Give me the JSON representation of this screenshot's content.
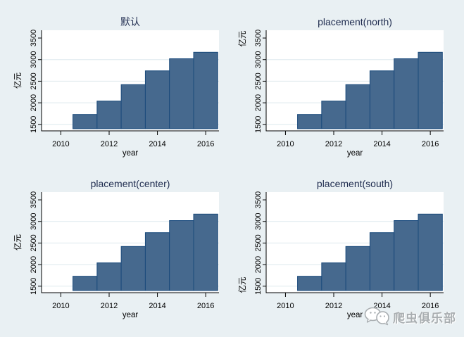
{
  "page": {
    "kind": "stata-graph-panel",
    "watermark": {
      "text": "爬虫俱乐部",
      "icon": "chat-bubbles-icon"
    }
  },
  "colors": {
    "background": "#E9F0F3",
    "plot_bg": "#FFFFFF",
    "grid": "#DEE9ED",
    "axis": "#000000",
    "text": "#000000",
    "title": "#1F2C4F",
    "bar_fill": "#46698E",
    "bar_stroke": "#1A4A7B",
    "watermark": "#A9AEB1"
  },
  "chart_data": [
    {
      "type": "bar",
      "title": "默认",
      "xlabel": "year",
      "ylabel": "亿元",
      "ylabel_placement": "center",
      "x": [
        2011,
        2012,
        2013,
        2014,
        2015,
        2016
      ],
      "values": [
        1730,
        2040,
        2420,
        2740,
        3020,
        3170
      ],
      "bar_base": 1400,
      "xticks": [
        2010,
        2012,
        2014,
        2016
      ],
      "yticks": [
        1500,
        2000,
        2500,
        3000,
        3500
      ],
      "gridlines": [
        1500,
        2000,
        2500,
        3000
      ],
      "xlim": [
        2009.2,
        2016.55
      ],
      "ylim": [
        1350,
        3680
      ],
      "grid": true,
      "legend": "none"
    },
    {
      "type": "bar",
      "title": "placement(north)",
      "xlabel": "year",
      "ylabel": "亿元",
      "ylabel_placement": "north",
      "x": [
        2011,
        2012,
        2013,
        2014,
        2015,
        2016
      ],
      "values": [
        1730,
        2040,
        2420,
        2740,
        3020,
        3170
      ],
      "bar_base": 1400,
      "xticks": [
        2010,
        2012,
        2014,
        2016
      ],
      "yticks": [
        1500,
        2000,
        2500,
        3000,
        3500
      ],
      "gridlines": [
        1500,
        2000,
        2500,
        3000
      ],
      "xlim": [
        2009.2,
        2016.55
      ],
      "ylim": [
        1350,
        3680
      ],
      "grid": true,
      "legend": "none"
    },
    {
      "type": "bar",
      "title": "placement(center)",
      "xlabel": "year",
      "ylabel": "亿元",
      "ylabel_placement": "center",
      "x": [
        2011,
        2012,
        2013,
        2014,
        2015,
        2016
      ],
      "values": [
        1730,
        2040,
        2420,
        2740,
        3020,
        3170
      ],
      "bar_base": 1400,
      "xticks": [
        2010,
        2012,
        2014,
        2016
      ],
      "yticks": [
        1500,
        2000,
        2500,
        3000,
        3500
      ],
      "gridlines": [
        1500,
        2000,
        2500,
        3000
      ],
      "xlim": [
        2009.2,
        2016.55
      ],
      "ylim": [
        1350,
        3680
      ],
      "grid": true,
      "legend": "none"
    },
    {
      "type": "bar",
      "title": "placement(south)",
      "xlabel": "year",
      "ylabel": "亿元",
      "ylabel_placement": "south",
      "x": [
        2011,
        2012,
        2013,
        2014,
        2015,
        2016
      ],
      "values": [
        1730,
        2040,
        2420,
        2740,
        3020,
        3170
      ],
      "bar_base": 1400,
      "xticks": [
        2010,
        2012,
        2014,
        2016
      ],
      "yticks": [
        1500,
        2000,
        2500,
        3000,
        3500
      ],
      "gridlines": [
        1500,
        2000,
        2500,
        3000
      ],
      "xlim": [
        2009.2,
        2016.55
      ],
      "ylim": [
        1350,
        3680
      ],
      "grid": true,
      "legend": "none"
    }
  ]
}
